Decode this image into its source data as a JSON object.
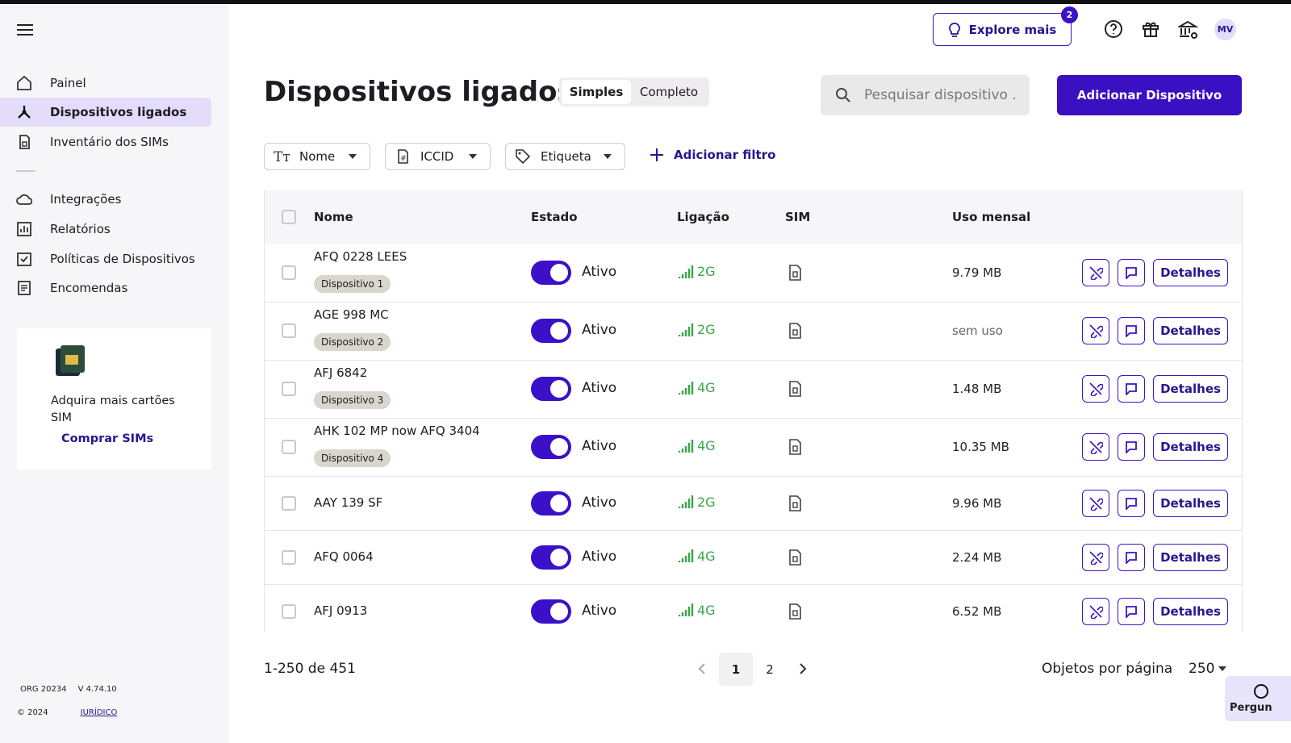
{
  "topbar": {
    "explore": "Explore mais",
    "badge": "2",
    "avatar": "MV"
  },
  "sidebar": {
    "nav": [
      "Painel",
      "Dispositivos ligados",
      "Inventário dos SIMs",
      "Integrações",
      "Relatórios",
      "Políticas de Dispositivos",
      "Encomendas"
    ],
    "promo": {
      "text": "Adquira mais cartões SIM",
      "link": "Comprar SIMs"
    },
    "footer": {
      "org": "ORG 20234",
      "version": "V 4.74.10",
      "copyright": "© 2024",
      "legal": "JURÍDICO"
    }
  },
  "header": {
    "title": "Dispositivos ligados",
    "views": [
      "Simples",
      "Completo"
    ],
    "search": "Pesquisar dispositivo .",
    "add": "Adicionar Dispositivo"
  },
  "filters": {
    "items": [
      "Nome",
      "ICCID",
      "Etiqueta"
    ],
    "add": "Adicionar filtro"
  },
  "table": {
    "columns": [
      "Nome",
      "Estado",
      "Ligação",
      "SIM",
      "Uso mensal"
    ],
    "details": "Detalhes",
    "rows": [
      {
        "name": "AFQ 0228 LEES",
        "tag": "Dispositivo 1",
        "status": "Ativo",
        "network": "2G",
        "usage": "9.79 MB"
      },
      {
        "name": "AGE 998 MC",
        "tag": "Dispositivo 2",
        "status": "Ativo",
        "network": "2G",
        "usage": "sem uso"
      },
      {
        "name": "AFJ 6842",
        "tag": "Dispositivo 3",
        "status": "Ativo",
        "network": "4G",
        "usage": "1.48 MB"
      },
      {
        "name": "AHK 102 MP now AFQ 3404",
        "tag": "Dispositivo 4",
        "status": "Ativo",
        "network": "4G",
        "usage": "10.35 MB"
      },
      {
        "name": "AAY 139 SF",
        "status": "Ativo",
        "network": "2G",
        "usage": "9.96 MB"
      },
      {
        "name": "AFQ 0064",
        "status": "Ativo",
        "network": "4G",
        "usage": "2.24 MB"
      },
      {
        "name": "AFJ 0913",
        "status": "Ativo",
        "network": "4G",
        "usage": "6.52 MB"
      }
    ]
  },
  "pagination": {
    "range": "1-250 de 451",
    "pages": [
      "1",
      "2"
    ],
    "per_page_label": "Objetos por página",
    "per_page": "250"
  },
  "help": "Pergun"
}
